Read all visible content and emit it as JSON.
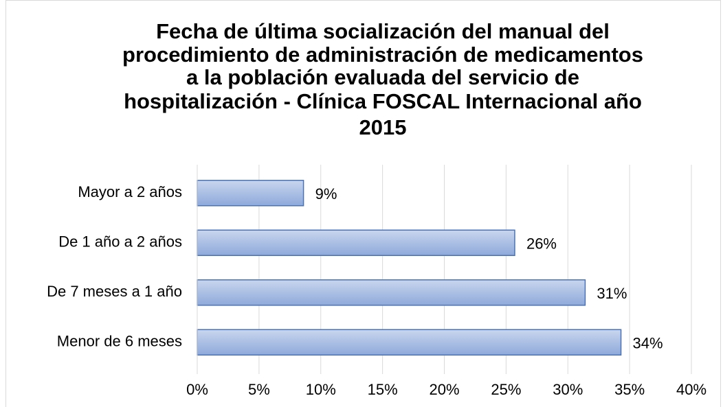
{
  "chart_data": {
    "type": "bar",
    "orientation": "horizontal",
    "title": [
      "Fecha de última socialización del manual del",
      "procedimiento de administración de medicamentos",
      "a la población evaluada del servicio de",
      "hospitalización - Clínica FOSCAL Internacional año",
      "2015"
    ],
    "categories": [
      "Mayor a 2 años",
      "De 1 año a 2 años",
      "De 7 meses a 1 año",
      "Menor de 6 meses"
    ],
    "values": [
      8.6,
      25.7,
      31.4,
      34.3
    ],
    "value_labels": [
      "9%",
      "26%",
      "31%",
      "34%"
    ],
    "color": "#9fb6e0",
    "xlim": [
      0,
      40
    ],
    "xticks": [
      {
        "value": 0,
        "label": "0%"
      },
      {
        "value": 5,
        "label": "5%"
      },
      {
        "value": 10,
        "label": "10%"
      },
      {
        "value": 15,
        "label": "15%"
      },
      {
        "value": 20,
        "label": "20%"
      },
      {
        "value": 25,
        "label": "25%"
      },
      {
        "value": 30,
        "label": "30%"
      },
      {
        "value": 35,
        "label": "35%"
      },
      {
        "value": 40,
        "label": "40%"
      }
    ],
    "grid": true
  }
}
